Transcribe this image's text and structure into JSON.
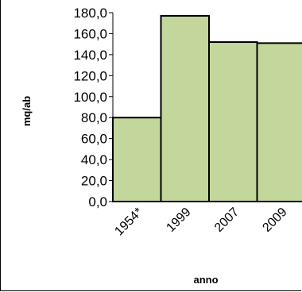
{
  "chart_data": {
    "type": "bar",
    "categories": [
      "1954*",
      "1999",
      "2007",
      "2009"
    ],
    "values": [
      80.0,
      177.0,
      152.0,
      151.0
    ],
    "ylim": [
      0,
      180
    ],
    "yticks": [
      "0,0",
      "20,0",
      "40,0",
      "60,0",
      "80,0",
      "100,0",
      "120,0",
      "140,0",
      "160,0",
      "180,0"
    ],
    "ylabel": "mq/ab",
    "xlabel": "anno",
    "bar_color": "#c3d69b",
    "bar_edge_color": "#000000",
    "grid": false,
    "legend": false
  }
}
